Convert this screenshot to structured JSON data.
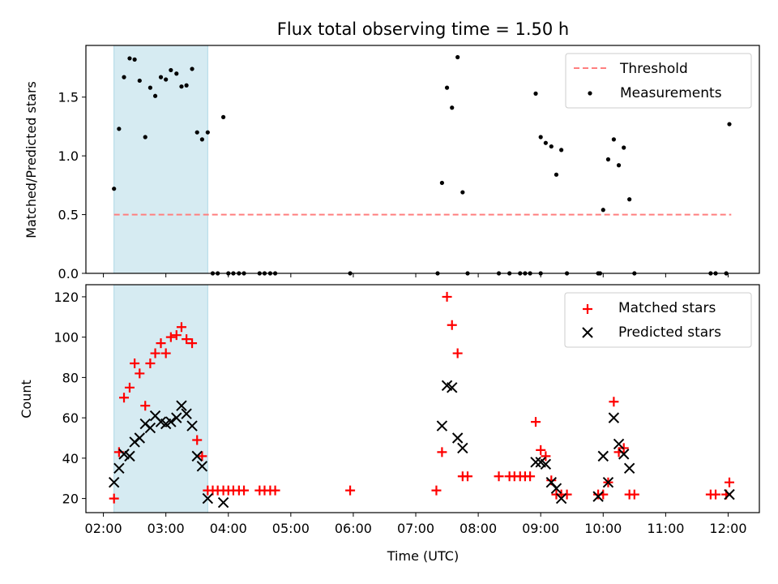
{
  "chart_data": [
    {
      "type": "scatter",
      "title": "Flux total observing time = 1.50 h",
      "ylabel": "Matched/Predicted stars",
      "xlabel": "",
      "xlim": [
        1.72,
        12.5
      ],
      "ylim": [
        0,
        1.94
      ],
      "x_tick_labels": [
        "02:00",
        "03:00",
        "04:00",
        "05:00",
        "06:00",
        "07:00",
        "08:00",
        "09:00",
        "10:00",
        "11:00",
        "12:00"
      ],
      "x_ticks_hours": [
        2,
        3,
        4,
        5,
        6,
        7,
        8,
        9,
        10,
        11,
        12
      ],
      "y_ticks": [
        0.0,
        0.5,
        1.0,
        1.5
      ],
      "y_tick_labels": [
        "0.0",
        "0.5",
        "1.0",
        "1.5"
      ],
      "highlight_span": [
        2.17,
        3.67
      ],
      "threshold": {
        "label": "Threshold",
        "value": 0.5,
        "x_range": [
          2.17,
          12.05
        ],
        "color": "#ff7f7f"
      },
      "series": [
        {
          "name": "Measurements",
          "color": "#000000",
          "points": [
            [
              2.17,
              0.72
            ],
            [
              2.25,
              1.23
            ],
            [
              2.33,
              1.67
            ],
            [
              2.42,
              1.83
            ],
            [
              2.5,
              1.82
            ],
            [
              2.58,
              1.64
            ],
            [
              2.67,
              1.16
            ],
            [
              2.75,
              1.58
            ],
            [
              2.83,
              1.51
            ],
            [
              2.92,
              1.67
            ],
            [
              3.0,
              1.65
            ],
            [
              3.08,
              1.73
            ],
            [
              3.17,
              1.7
            ],
            [
              3.25,
              1.59
            ],
            [
              3.33,
              1.6
            ],
            [
              3.42,
              1.74
            ],
            [
              3.5,
              1.2
            ],
            [
              3.58,
              1.14
            ],
            [
              3.67,
              1.2
            ],
            [
              3.75,
              0
            ],
            [
              3.83,
              0
            ],
            [
              3.92,
              1.33
            ],
            [
              4.0,
              0
            ],
            [
              4.08,
              0
            ],
            [
              4.17,
              0
            ],
            [
              4.25,
              0
            ],
            [
              4.5,
              0
            ],
            [
              4.58,
              0
            ],
            [
              4.67,
              0
            ],
            [
              4.75,
              0
            ],
            [
              5.95,
              0
            ],
            [
              7.35,
              0
            ],
            [
              7.42,
              0.77
            ],
            [
              7.5,
              1.58
            ],
            [
              7.58,
              1.41
            ],
            [
              7.67,
              1.84
            ],
            [
              7.75,
              0.69
            ],
            [
              7.83,
              0
            ],
            [
              8.33,
              0
            ],
            [
              8.5,
              0
            ],
            [
              8.67,
              0
            ],
            [
              8.75,
              0
            ],
            [
              8.83,
              0
            ],
            [
              8.92,
              1.53
            ],
            [
              9.0,
              0
            ],
            [
              9.0,
              1.16
            ],
            [
              9.08,
              1.11
            ],
            [
              9.17,
              1.08
            ],
            [
              9.25,
              0.84
            ],
            [
              9.33,
              1.05
            ],
            [
              9.42,
              0
            ],
            [
              9.92,
              0
            ],
            [
              9.95,
              0
            ],
            [
              10.0,
              0.54
            ],
            [
              10.08,
              0.97
            ],
            [
              10.17,
              1.14
            ],
            [
              10.25,
              0.92
            ],
            [
              10.33,
              1.07
            ],
            [
              10.42,
              0.63
            ],
            [
              10.5,
              0
            ],
            [
              11.72,
              0
            ],
            [
              11.8,
              0
            ],
            [
              11.97,
              0
            ],
            [
              12.02,
              1.27
            ]
          ]
        }
      ]
    },
    {
      "type": "scatter",
      "title": "",
      "ylabel": "Count",
      "xlabel": "Time (UTC)",
      "xlim": [
        1.72,
        12.5
      ],
      "ylim": [
        13,
        126
      ],
      "x_tick_labels": [
        "02:00",
        "03:00",
        "04:00",
        "05:00",
        "06:00",
        "07:00",
        "08:00",
        "09:00",
        "10:00",
        "11:00",
        "12:00"
      ],
      "x_ticks_hours": [
        2,
        3,
        4,
        5,
        6,
        7,
        8,
        9,
        10,
        11,
        12
      ],
      "y_ticks": [
        20,
        40,
        60,
        80,
        100,
        120
      ],
      "y_tick_labels": [
        "20",
        "40",
        "60",
        "80",
        "100",
        "120"
      ],
      "highlight_span": [
        2.17,
        3.67
      ],
      "series": [
        {
          "name": "Matched stars",
          "marker": "+",
          "color": "#ff0000",
          "points": [
            [
              2.17,
              20
            ],
            [
              2.25,
              43
            ],
            [
              2.33,
              70
            ],
            [
              2.42,
              75
            ],
            [
              2.5,
              87
            ],
            [
              2.58,
              82
            ],
            [
              2.67,
              66
            ],
            [
              2.75,
              87
            ],
            [
              2.83,
              92
            ],
            [
              2.92,
              97
            ],
            [
              3.0,
              92
            ],
            [
              3.08,
              100
            ],
            [
              3.17,
              101
            ],
            [
              3.25,
              105
            ],
            [
              3.33,
              99
            ],
            [
              3.42,
              97
            ],
            [
              3.5,
              49
            ],
            [
              3.58,
              41
            ],
            [
              3.67,
              24
            ],
            [
              3.75,
              24
            ],
            [
              3.83,
              24
            ],
            [
              3.92,
              24
            ],
            [
              4.0,
              24
            ],
            [
              4.08,
              24
            ],
            [
              4.17,
              24
            ],
            [
              4.25,
              24
            ],
            [
              4.5,
              24
            ],
            [
              4.58,
              24
            ],
            [
              4.67,
              24
            ],
            [
              4.75,
              24
            ],
            [
              5.95,
              24
            ],
            [
              7.33,
              24
            ],
            [
              7.42,
              43
            ],
            [
              7.5,
              120
            ],
            [
              7.58,
              106
            ],
            [
              7.67,
              92
            ],
            [
              7.75,
              31
            ],
            [
              7.83,
              31
            ],
            [
              8.33,
              31
            ],
            [
              8.5,
              31
            ],
            [
              8.58,
              31
            ],
            [
              8.67,
              31
            ],
            [
              8.75,
              31
            ],
            [
              8.83,
              31
            ],
            [
              8.92,
              58
            ],
            [
              9.0,
              44
            ],
            [
              9.08,
              41
            ],
            [
              9.17,
              29
            ],
            [
              9.25,
              22
            ],
            [
              9.33,
              22
            ],
            [
              9.42,
              22
            ],
            [
              9.92,
              22
            ],
            [
              10.0,
              22
            ],
            [
              10.08,
              28
            ],
            [
              10.17,
              68
            ],
            [
              10.25,
              43
            ],
            [
              10.33,
              45
            ],
            [
              10.42,
              22
            ],
            [
              10.5,
              22
            ],
            [
              11.72,
              22
            ],
            [
              11.8,
              22
            ],
            [
              11.97,
              22
            ],
            [
              12.02,
              28
            ]
          ]
        },
        {
          "name": "Predicted stars",
          "marker": "x",
          "color": "#000000",
          "points": [
            [
              2.17,
              28
            ],
            [
              2.25,
              35
            ],
            [
              2.33,
              42
            ],
            [
              2.42,
              41
            ],
            [
              2.5,
              48
            ],
            [
              2.58,
              50
            ],
            [
              2.67,
              57
            ],
            [
              2.75,
              55
            ],
            [
              2.83,
              61
            ],
            [
              2.92,
              58
            ],
            [
              3.0,
              57
            ],
            [
              3.08,
              58
            ],
            [
              3.17,
              60
            ],
            [
              3.25,
              66
            ],
            [
              3.33,
              62
            ],
            [
              3.42,
              56
            ],
            [
              3.5,
              41
            ],
            [
              3.58,
              36
            ],
            [
              3.67,
              20
            ],
            [
              3.92,
              18
            ],
            [
              7.42,
              56
            ],
            [
              7.5,
              76
            ],
            [
              7.58,
              75
            ],
            [
              7.67,
              50
            ],
            [
              7.75,
              45
            ],
            [
              8.92,
              38
            ],
            [
              9.0,
              38
            ],
            [
              9.08,
              37
            ],
            [
              9.17,
              28
            ],
            [
              9.25,
              25
            ],
            [
              9.33,
              20
            ],
            [
              9.92,
              21
            ],
            [
              10.0,
              41
            ],
            [
              10.08,
              28
            ],
            [
              10.17,
              60
            ],
            [
              10.25,
              47
            ],
            [
              10.33,
              42
            ],
            [
              10.42,
              35
            ],
            [
              12.02,
              22
            ]
          ]
        }
      ]
    }
  ]
}
